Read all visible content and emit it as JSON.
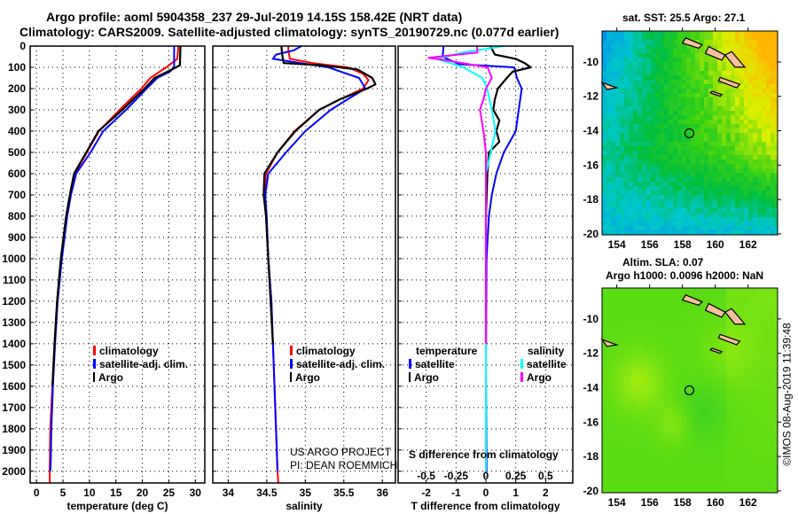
{
  "title": {
    "line1": "Argo profile: aoml 5904358_237 29-Jul-2019 14.15S 158.42E (NRT data)",
    "line2": "Climatology: CARS2009. Satellite-adjusted climatology: synTS_20190729.nc (0.077d earlier)"
  },
  "colors": {
    "climatology": "#ff0000",
    "satellite": "#0000ff",
    "argo": "#000000",
    "sat_salinity": "#00ffff",
    "argo_salinity": "#ff00ff"
  },
  "chart_data": [
    {
      "type": "line",
      "title": "",
      "xlabel": "temperature (deg C)",
      "ylabel": "",
      "xlim": [
        -1.2,
        31.8
      ],
      "ylim": [
        0,
        2055
      ],
      "grid": true,
      "y_reversed": true,
      "xticks": [
        0,
        5,
        10,
        15,
        20,
        25,
        30
      ],
      "yticks": [
        0,
        100,
        200,
        300,
        400,
        500,
        600,
        700,
        800,
        900,
        1000,
        1100,
        1200,
        1300,
        1400,
        1500,
        1600,
        1700,
        1800,
        1900,
        2000
      ],
      "legend": [
        "climatology",
        "satellite-adj. clim.",
        "Argo"
      ],
      "series": [
        {
          "name": "climatology",
          "color": "#ff0000",
          "depth": [
            0,
            60,
            100,
            150,
            200,
            300,
            400,
            500,
            600,
            700,
            800,
            1000,
            1200,
            1400,
            1600,
            1800,
            2000,
            2055
          ],
          "values": [
            26.8,
            26.6,
            24.5,
            21.5,
            19.8,
            15.7,
            11.8,
            9.5,
            7.3,
            6.4,
            5.7,
            4.7,
            3.9,
            3.4,
            3.0,
            2.6,
            2.5,
            2.5
          ]
        },
        {
          "name": "satellite-adj. clim.",
          "color": "#0000ff",
          "depth": [
            0,
            100,
            120,
            150,
            200,
            300,
            400,
            500,
            600,
            700,
            800,
            1000,
            1200,
            1400,
            1600,
            1800,
            1950,
            2000
          ],
          "values": [
            26.0,
            26.0,
            25.2,
            22.8,
            20.8,
            16.9,
            12.6,
            10.2,
            7.5,
            6.5,
            5.8,
            4.8,
            4.0,
            3.5,
            3.1,
            2.8,
            2.7,
            2.6
          ]
        },
        {
          "name": "Argo",
          "color": "#000000",
          "depth": [
            0,
            90,
            110,
            150,
            200,
            300,
            400,
            500,
            600,
            700,
            800,
            1000,
            1200,
            1400,
            1600
          ],
          "values": [
            27.2,
            27.1,
            25.6,
            22.3,
            20.4,
            16.2,
            11.7,
            9.4,
            7.1,
            6.3,
            5.6,
            4.6,
            3.9,
            3.4,
            3.0
          ]
        }
      ]
    },
    {
      "type": "line",
      "title": "",
      "xlabel": "salinity",
      "ylabel": "",
      "xlim": [
        33.8,
        36.17
      ],
      "ylim": [
        0,
        2055
      ],
      "grid": true,
      "y_reversed": true,
      "xticks": [
        34,
        34.5,
        35,
        35.5,
        36
      ],
      "legend": [
        "climatology",
        "satellite-adj. clim.",
        "Argo"
      ],
      "series": [
        {
          "name": "climatology",
          "color": "#ff0000",
          "depth": [
            0,
            20,
            60,
            80,
            100,
            130,
            160,
            200,
            250,
            300,
            400,
            500,
            600,
            700,
            800,
            1000,
            1200,
            1500,
            1800,
            2000,
            2055
          ],
          "values": [
            34.78,
            34.78,
            34.8,
            35.1,
            35.55,
            35.75,
            35.82,
            35.75,
            35.45,
            35.18,
            34.86,
            34.64,
            34.49,
            34.47,
            34.49,
            34.52,
            34.56,
            34.59,
            34.62,
            34.64,
            34.65
          ]
        },
        {
          "name": "satellite-adj. clim.",
          "color": "#0000ff",
          "depth": [
            0,
            20,
            40,
            60,
            100,
            150,
            200,
            250,
            300,
            400,
            500,
            600,
            700,
            800,
            1000,
            1200,
            1500,
            1800,
            2000
          ],
          "values": [
            34.95,
            34.85,
            34.62,
            34.58,
            35.3,
            35.7,
            35.78,
            35.55,
            35.33,
            35.0,
            34.75,
            34.52,
            34.48,
            34.5,
            34.52,
            34.56,
            34.59,
            34.62,
            34.64
          ]
        },
        {
          "name": "Argo",
          "color": "#000000",
          "depth": [
            0,
            40,
            80,
            90,
            110,
            150,
            180,
            200,
            250,
            300,
            400,
            500,
            600,
            700,
            800,
            1000,
            1200,
            1400
          ],
          "values": [
            34.69,
            34.7,
            34.72,
            35.2,
            35.68,
            35.87,
            35.91,
            35.8,
            35.45,
            35.18,
            34.87,
            34.64,
            34.47,
            34.46,
            34.49,
            34.52,
            34.55,
            34.58
          ]
        }
      ]
    },
    {
      "type": "line",
      "title": "",
      "xlabel": "T difference from climatology",
      "x2label": "S difference from climatology",
      "xlim": [
        -2.94,
        2.91
      ],
      "x2lim": [
        -0.735,
        0.7275
      ],
      "ylim": [
        0,
        2055
      ],
      "grid": true,
      "y_reversed": true,
      "xticks": [
        -2,
        -1,
        0,
        1,
        2
      ],
      "x2ticks": [
        "-0.5",
        "-0.25",
        "0",
        "0.25",
        "0.5"
      ],
      "legend_temperature": {
        "header": "temperature",
        "items": [
          "satellite",
          "Argo"
        ]
      },
      "legend_salinity": {
        "header": "salinity",
        "items": [
          "satellite",
          "Argo"
        ]
      },
      "series": [
        {
          "name": "temperature satellite",
          "units": "T",
          "color": "#0000ff",
          "depth": [
            0,
            50,
            85,
            100,
            150,
            200,
            300,
            400,
            500,
            600,
            700,
            800,
            1000,
            1500,
            2000
          ],
          "values": [
            -1.42,
            -1.45,
            -0.9,
            0.95,
            1.04,
            1.2,
            1.1,
            1.0,
            0.6,
            0.35,
            0.2,
            0.1,
            0.02,
            0.0,
            0.02
          ]
        },
        {
          "name": "temperature Argo",
          "units": "T",
          "color": "#000000",
          "depth": [
            0,
            40,
            60,
            80,
            100,
            120,
            150,
            200,
            250,
            300,
            350,
            400,
            450,
            500,
            600,
            800,
            1000,
            1400
          ],
          "values": [
            0.15,
            0.3,
            1.0,
            1.3,
            1.5,
            0.9,
            0.7,
            0.4,
            0.3,
            0.25,
            0.45,
            0.35,
            0.45,
            0.1,
            0.05,
            0.0,
            0.0,
            0.0
          ]
        },
        {
          "name": "salinity satellite",
          "units": "S",
          "color": "#00ffff",
          "depth": [
            0,
            30,
            60,
            100,
            150,
            200,
            300,
            400,
            500,
            600,
            800,
            1000,
            1500,
            2000
          ],
          "values": [
            0.15,
            -0.19,
            -0.41,
            -0.19,
            -0.03,
            0.01,
            0.05,
            0.08,
            0.04,
            0.0,
            0.0,
            0.0,
            0.0,
            0.0
          ]
        },
        {
          "name": "salinity Argo",
          "units": "S",
          "color": "#ff00ff",
          "depth": [
            0,
            30,
            55,
            70,
            100,
            150,
            200,
            250,
            300,
            400,
            500,
            600,
            800,
            1000,
            1400
          ],
          "values": [
            -0.075,
            -0.07,
            -0.48,
            -0.3,
            0.015,
            0.05,
            0.0,
            -0.02,
            -0.05,
            -0.02,
            0.0,
            0.0,
            0.0,
            0.0,
            0.0
          ]
        }
      ]
    }
  ],
  "maps": {
    "sst": {
      "title": "sat. SST: 25.5 Argo: 27.1"
    },
    "sla": {
      "title1": "Altim. SLA: 0.07",
      "title2": "Argo h1000: 0.0096 h2000: NaN"
    },
    "lat_ticks": [
      "-10",
      "-12",
      "-14",
      "-16",
      "-18",
      "-20"
    ],
    "lon_ticks": [
      "154",
      "156",
      "158",
      "160",
      "162"
    ],
    "argo_position": {
      "lon": 158.42,
      "lat": -14.15
    }
  },
  "credits": {
    "project": "US ARGO PROJECT",
    "pi": "PI: DEAN ROEMMICH",
    "imos": "©IMOS 08-Aug-2019 11:39:48"
  }
}
